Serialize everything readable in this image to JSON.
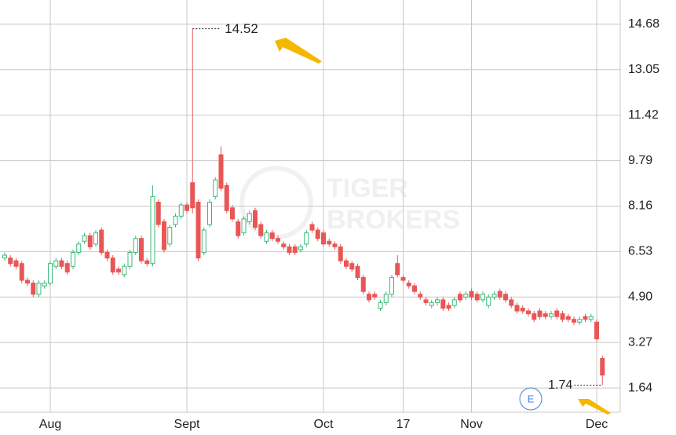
{
  "chart_data": {
    "type": "candlestick",
    "categories": [
      null,
      null,
      null,
      null,
      null,
      null,
      null,
      null,
      "Aug",
      null,
      null,
      null,
      null,
      null,
      null,
      null,
      null,
      null,
      null,
      null,
      null,
      null,
      null,
      null,
      null,
      null,
      null,
      null,
      null,
      null,
      null,
      null,
      "Sept",
      null,
      null,
      null,
      null,
      null,
      null,
      null,
      null,
      null,
      null,
      null,
      null,
      null,
      null,
      null,
      null,
      null,
      null,
      null,
      null,
      null,
      null,
      null,
      "Oct",
      null,
      null,
      null,
      null,
      null,
      null,
      null,
      null,
      null,
      null,
      null,
      null,
      null,
      "17",
      null,
      null,
      null,
      null,
      null,
      null,
      null,
      null,
      null,
      null,
      null,
      "Nov",
      null,
      null,
      null,
      null,
      null,
      null,
      null,
      null,
      null,
      null,
      null,
      null,
      null,
      null,
      null,
      null,
      null,
      null,
      null,
      null,
      null,
      "Dec",
      null
    ],
    "open": [
      6.3,
      6.3,
      6.2,
      6.1,
      5.5,
      5.4,
      5.0,
      5.3,
      5.4,
      6.0,
      6.2,
      6.1,
      6.0,
      6.5,
      6.9,
      7.1,
      6.8,
      7.3,
      6.5,
      6.3,
      5.9,
      5.7,
      6.0,
      6.5,
      7.0,
      6.2,
      6.1,
      8.3,
      7.6,
      6.8,
      7.5,
      7.8,
      8.2,
      9.0,
      8.3,
      6.5,
      7.5,
      8.5,
      10.0,
      8.9,
      8.1,
      7.6,
      7.2,
      7.6,
      8.0,
      7.5,
      6.9,
      7.2,
      7.0,
      6.8,
      6.7,
      6.7,
      6.6,
      6.8,
      7.5,
      7.3,
      7.2,
      6.9,
      6.8,
      6.7,
      6.2,
      6.1,
      6.0,
      5.6,
      5.0,
      5.0,
      4.5,
      4.7,
      5.0,
      6.1,
      5.6,
      5.4,
      5.3,
      5.0,
      4.8,
      4.6,
      4.7,
      4.8,
      4.6,
      4.6,
      5.0,
      4.9,
      5.1,
      5.0,
      4.8,
      4.6,
      4.9,
      5.1,
      5.0,
      4.8,
      4.6,
      4.5,
      4.4,
      4.3,
      4.4,
      4.3,
      4.2,
      4.4,
      4.3,
      4.2,
      4.1,
      4.0,
      4.2,
      4.1,
      4.0,
      2.7
    ],
    "high": [
      6.5,
      6.4,
      6.3,
      6.2,
      5.6,
      5.5,
      5.5,
      5.5,
      6.2,
      6.3,
      6.3,
      6.2,
      6.6,
      6.9,
      7.2,
      7.2,
      7.3,
      7.4,
      6.6,
      6.4,
      6.0,
      6.1,
      6.6,
      7.1,
      7.1,
      6.3,
      8.9,
      8.4,
      7.7,
      7.5,
      7.9,
      8.3,
      8.3,
      14.52,
      8.4,
      7.4,
      8.4,
      9.2,
      10.3,
      9.0,
      8.2,
      7.7,
      7.8,
      8.0,
      8.1,
      7.6,
      7.3,
      7.3,
      7.1,
      6.9,
      6.8,
      6.8,
      6.8,
      7.3,
      7.6,
      7.4,
      7.3,
      7.0,
      6.9,
      6.8,
      6.3,
      6.2,
      6.1,
      5.7,
      5.1,
      5.1,
      4.8,
      5.1,
      5.7,
      6.4,
      5.7,
      5.5,
      5.4,
      5.1,
      4.9,
      4.8,
      4.9,
      4.9,
      4.7,
      4.9,
      5.1,
      5.1,
      5.2,
      5.1,
      5.1,
      5.0,
      5.1,
      5.2,
      5.1,
      4.9,
      4.7,
      4.6,
      4.5,
      4.4,
      4.5,
      4.4,
      4.4,
      4.5,
      4.4,
      4.3,
      4.2,
      4.2,
      4.3,
      4.3,
      4.1,
      2.8
    ],
    "low": [
      6.2,
      6.0,
      5.9,
      5.4,
      5.3,
      4.9,
      4.9,
      5.2,
      5.3,
      5.9,
      5.9,
      5.7,
      5.9,
      6.4,
      6.8,
      6.6,
      6.7,
      6.4,
      6.2,
      5.7,
      5.7,
      5.6,
      5.9,
      6.4,
      6.1,
      6.0,
      6.0,
      7.4,
      6.5,
      6.7,
      7.4,
      7.7,
      7.9,
      7.9,
      6.2,
      6.4,
      7.4,
      8.4,
      8.7,
      7.9,
      7.6,
      7.0,
      7.1,
      7.5,
      7.3,
      7.0,
      6.8,
      6.9,
      6.8,
      6.6,
      6.4,
      6.4,
      6.5,
      6.7,
      7.2,
      6.9,
      6.7,
      6.7,
      6.6,
      6.1,
      5.9,
      5.8,
      5.5,
      5.0,
      4.7,
      4.8,
      4.4,
      4.6,
      4.9,
      5.6,
      5.4,
      5.2,
      5.0,
      4.8,
      4.6,
      4.5,
      4.6,
      4.4,
      4.4,
      4.5,
      4.7,
      4.8,
      4.8,
      4.7,
      4.7,
      4.5,
      4.8,
      4.8,
      4.7,
      4.5,
      4.3,
      4.3,
      4.2,
      4.0,
      4.1,
      4.1,
      4.1,
      4.1,
      4.0,
      4.0,
      3.9,
      3.9,
      4.0,
      4.0,
      3.3,
      1.74
    ],
    "close": [
      6.4,
      6.1,
      6.0,
      5.5,
      5.4,
      5.0,
      5.4,
      5.4,
      6.1,
      6.2,
      6.0,
      5.8,
      6.5,
      6.8,
      7.1,
      6.7,
      7.2,
      6.5,
      6.3,
      5.8,
      5.8,
      6.0,
      6.5,
      7.0,
      6.2,
      6.1,
      8.5,
      7.5,
      6.6,
      7.4,
      7.8,
      8.2,
      8.0,
      8.1,
      6.3,
      7.3,
      8.3,
      9.1,
      8.8,
      8.0,
      7.7,
      7.1,
      7.7,
      7.9,
      7.4,
      7.1,
      7.2,
      7.0,
      6.9,
      6.7,
      6.5,
      6.5,
      6.7,
      7.2,
      7.3,
      7.0,
      6.8,
      6.8,
      6.7,
      6.2,
      6.0,
      5.9,
      5.6,
      5.1,
      4.8,
      4.9,
      4.7,
      5.0,
      5.6,
      5.7,
      5.5,
      5.3,
      5.1,
      4.9,
      4.7,
      4.7,
      4.8,
      4.5,
      4.5,
      4.8,
      4.8,
      5.0,
      4.9,
      4.8,
      5.0,
      4.9,
      5.0,
      4.9,
      4.8,
      4.6,
      4.4,
      4.4,
      4.3,
      4.1,
      4.2,
      4.2,
      4.3,
      4.2,
      4.1,
      4.1,
      4.0,
      4.1,
      4.1,
      4.2,
      3.4,
      2.1
    ],
    "up_color": "#3cb878",
    "down_color": "#e85656",
    "ylim": [
      0.77,
      15.55
    ],
    "yticks": [
      1.64,
      3.27,
      {
        "value": 4.9,
        "label": "4.90"
      },
      6.53,
      8.16,
      9.79,
      11.42,
      13.05,
      14.68
    ],
    "grid": true,
    "watermark": [
      "TIGER",
      "BROKERS"
    ],
    "event_marker": "E"
  }
}
